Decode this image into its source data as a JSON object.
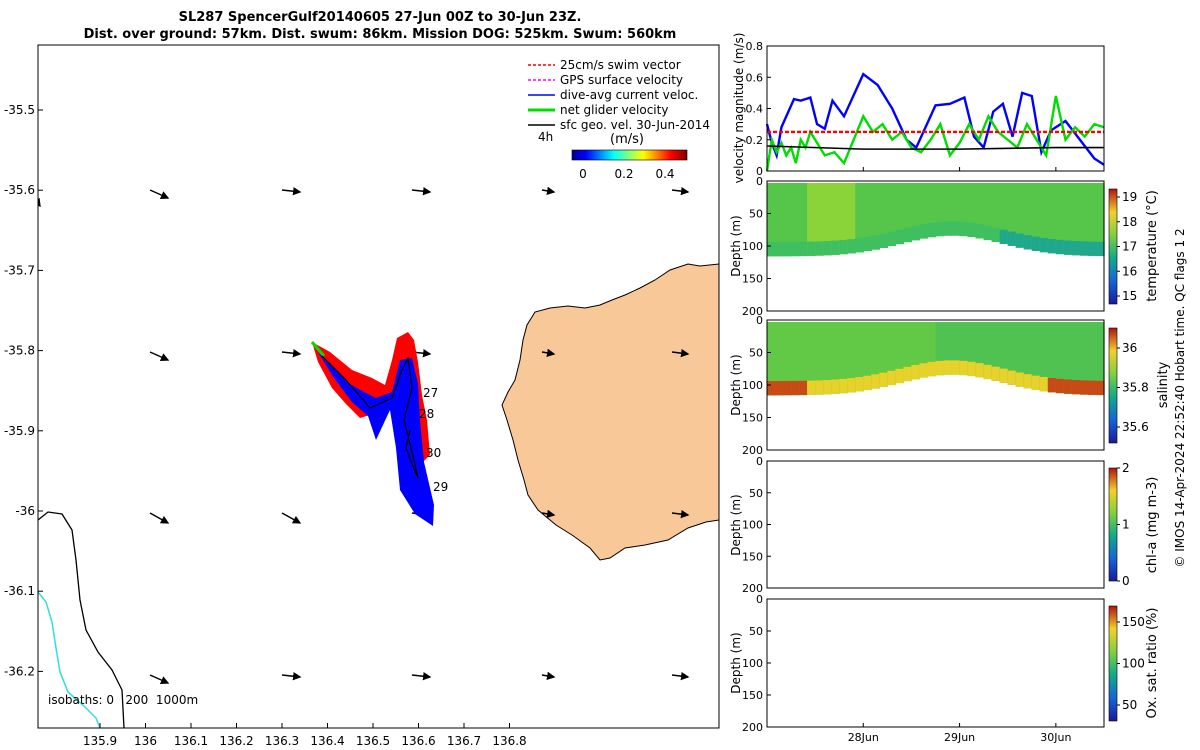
{
  "title_line1": "SL287 SpencerGulf20140605 27-Jun 00Z to 30-Jun 23Z.",
  "title_line2": "Dist. over ground: 57km. Dist. swum: 86km. Mission DOG: 525km. Swum: 560km",
  "colors": {
    "land": "#f8c898",
    "swim": "#ff0000",
    "gps": "#ff00ff",
    "current": "#0000ff",
    "net": "#00dd00",
    "geo": "#000000",
    "coast": "#000000",
    "isobath_200": "#33dddd"
  },
  "map": {
    "lon_ticks": [
      "135.9",
      "136",
      "136.1",
      "136.2",
      "136.3",
      "136.4",
      "136.5",
      "136.6",
      "136.7",
      "136.8"
    ],
    "lat_ticks": [
      "-35.5",
      "-35.6",
      "-35.7",
      "-35.8",
      "-35.9",
      "-36",
      "-36.1",
      "-36.2"
    ],
    "legend": [
      "25cm/s swim vector",
      "GPS surface velocity",
      "dive-avg current veloc.",
      "net glider velocity",
      "sfc geo. vel. 30-Jun-2014"
    ],
    "timestep_label": "4h",
    "colorbar_title": "(m/s)",
    "colorbar_ticks": [
      "0",
      "0.2",
      "0.4"
    ],
    "day_labels": [
      "27",
      "28",
      "30",
      "29"
    ],
    "isobath_label": "isobaths: 0   200  1000m"
  },
  "chart_data": [
    {
      "type": "line",
      "title": "",
      "ylabel": "velocity magnitude (m/s)",
      "ylim": [
        0,
        0.8
      ],
      "yticks": [
        "0",
        "0.2",
        "0.4",
        "0.6",
        "0.8"
      ],
      "xticks": [
        "28Jun",
        "29Jun",
        "30Jun"
      ],
      "series": [
        {
          "color": "#0000ff",
          "x": [
            0,
            0.05,
            0.1,
            0.15,
            0.28,
            0.35,
            0.45,
            0.52,
            0.6,
            0.68,
            0.8,
            1.0,
            1.15,
            1.3,
            1.45,
            1.55,
            1.75,
            1.9,
            2.05,
            2.15,
            2.25,
            2.35,
            2.45,
            2.55,
            2.65,
            2.75,
            2.85,
            2.95,
            3.1,
            3.25,
            3.4,
            3.5
          ],
          "values": [
            0.3,
            0.18,
            0.1,
            0.28,
            0.46,
            0.45,
            0.47,
            0.3,
            0.27,
            0.45,
            0.35,
            0.62,
            0.55,
            0.4,
            0.2,
            0.15,
            0.42,
            0.43,
            0.47,
            0.22,
            0.15,
            0.38,
            0.43,
            0.22,
            0.5,
            0.48,
            0.12,
            0.26,
            0.32,
            0.2,
            0.08,
            0.04
          ]
        },
        {
          "color": "#00dd00",
          "x": [
            0,
            0.05,
            0.1,
            0.15,
            0.2,
            0.25,
            0.3,
            0.35,
            0.4,
            0.45,
            0.5,
            0.6,
            0.7,
            0.8,
            0.9,
            1.0,
            1.1,
            1.2,
            1.3,
            1.4,
            1.5,
            1.6,
            1.7,
            1.8,
            1.9,
            2.0,
            2.1,
            2.2,
            2.3,
            2.4,
            2.5,
            2.6,
            2.7,
            2.8,
            2.9,
            3.0,
            3.1,
            3.2,
            3.3,
            3.4,
            3.5
          ],
          "values": [
            0.0,
            0.2,
            0.12,
            0.18,
            0.1,
            0.15,
            0.05,
            0.2,
            0.15,
            0.25,
            0.2,
            0.1,
            0.12,
            0.05,
            0.2,
            0.35,
            0.25,
            0.3,
            0.2,
            0.25,
            0.15,
            0.12,
            0.2,
            0.3,
            0.1,
            0.18,
            0.3,
            0.2,
            0.35,
            0.25,
            0.2,
            0.15,
            0.3,
            0.2,
            0.1,
            0.48,
            0.2,
            0.28,
            0.22,
            0.3,
            0.28
          ]
        },
        {
          "color": "#ff0000",
          "x": [
            0,
            3.5
          ],
          "values": [
            0.25,
            0.25
          ]
        },
        {
          "color": "#000000",
          "x": [
            0,
            1.0,
            2.0,
            3.0,
            3.5
          ],
          "values": [
            0.16,
            0.14,
            0.14,
            0.15,
            0.15
          ]
        }
      ]
    },
    {
      "type": "heatmap",
      "ylabel": "Depth (m)",
      "yticks": [
        "0",
        "50",
        "100",
        "150",
        "200"
      ],
      "colorbar_label": "temperature (°C)",
      "colorbar_ticks": [
        "19",
        "18",
        "17",
        "16",
        "15"
      ],
      "clim": [
        14.7,
        19.3
      ]
    },
    {
      "type": "heatmap",
      "ylabel": "Depth (m)",
      "yticks": [
        "0",
        "50",
        "100",
        "150",
        "200"
      ],
      "colorbar_label": "salinity",
      "colorbar_ticks": [
        "36",
        "35.8",
        "35.6"
      ],
      "clim": [
        35.45,
        36.1
      ]
    },
    {
      "type": "heatmap",
      "ylabel": "Depth (m)",
      "yticks": [
        "0",
        "50",
        "100",
        "150",
        "200"
      ],
      "colorbar_label": "chl-a (mg m-3)",
      "colorbar_ticks": [
        "2",
        "1",
        "0"
      ],
      "clim": [
        0,
        2
      ]
    },
    {
      "type": "heatmap",
      "ylabel": "Depth (m)",
      "yticks": [
        "0",
        "50",
        "100",
        "150",
        "200"
      ],
      "xticks": [
        "28Jun",
        "29Jun",
        "30Jun"
      ],
      "colorbar_label": "Ox. sat. ratio (%)",
      "colorbar_ticks": [
        "150",
        "100",
        "50"
      ],
      "clim": [
        25,
        175
      ]
    }
  ],
  "side_note": "© IMOS 14-Apr-2024 22:52:40 Hobart time. QC flags 1  2"
}
